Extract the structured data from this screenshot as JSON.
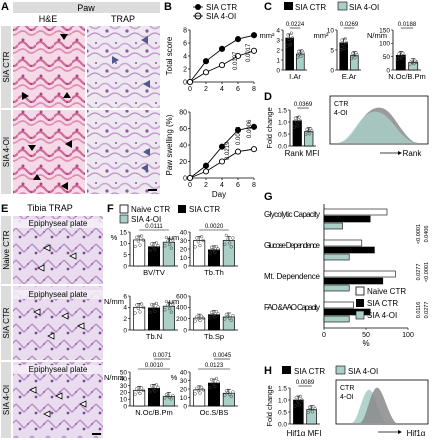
{
  "panels": {
    "A": {
      "letter": "A",
      "title": "Paw",
      "col_he": "H&E",
      "col_trap": "TRAP",
      "rows": [
        "SIA CTR",
        "SIA 4-OI"
      ]
    },
    "B": {
      "letter": "B",
      "legend": [
        "SIA CTR",
        "SIA 4-OI"
      ],
      "xlabel": "Day",
      "p_top": [
        "0.0197",
        "0.0017"
      ],
      "p_bottom": [
        "0.0219",
        "0.0043",
        "0.0006"
      ]
    },
    "C": {
      "letter": "C",
      "legend": [
        "SIA CTR",
        "SIA 4-OI"
      ],
      "p_values": [
        "0.0224",
        "0.0269",
        "0.0188"
      ],
      "unit_labels": [
        "mm²",
        "mm²",
        "N/mm"
      ]
    },
    "D": {
      "letter": "D",
      "p_value": "0.0369",
      "ylabel": "Fold change",
      "xlabel": "Rank MFI",
      "flow_ctr": "CTR",
      "flow_oi": "4-OI",
      "flow_xlabel": "Rank"
    },
    "E": {
      "letter": "E",
      "title": "Tibia TRAP",
      "plate_label": "Epiphyseal plate",
      "rows": [
        "Naive CTR",
        "SIA CTR",
        "SIA 4-OI"
      ]
    },
    "F": {
      "letter": "F",
      "legend": [
        "Naive CTR",
        "SIA CTR",
        "SIA 4-OI"
      ],
      "p_values": [
        "0.0111",
        "0.0020",
        "0.0010",
        "0.0071",
        "0.0123",
        "0.0045"
      ],
      "units": [
        "%",
        "μm",
        "N/mm",
        "μm",
        "N/mm",
        "%"
      ]
    },
    "G": {
      "letter": "G",
      "legend": [
        "Naive CTR",
        "SIA CTR",
        "SIA 4-OI"
      ],
      "categories": [
        "Glycolytic Capacity",
        "Glucose Dependence",
        "Mt. Dependence",
        "FAO & AAO Capacity"
      ],
      "xlabel": "%",
      "xticks": [
        "0",
        "50",
        "100"
      ],
      "p_values": [
        "<0.0001",
        "0.0406",
        "0.0277",
        "<0.0001",
        "0.0116",
        "0.0277"
      ]
    },
    "H": {
      "letter": "H",
      "legend": [
        "SIA CTR",
        "SIA 4-OI"
      ],
      "p_value": "0.0089",
      "ylabel": "Fold change",
      "xlabel": "Hif1α MFI",
      "flow_ctr": "CTR",
      "flow_oi": "4-OI",
      "flow_xlabel": "Hif1α"
    }
  },
  "colors": {
    "ctr": "#000000",
    "oi": "#a9cfc7",
    "naive": "#ffffff",
    "he": "#d97aa6",
    "trap": "#c9b0d2"
  },
  "chart_data": [
    {
      "type": "line",
      "panel": "B-top",
      "ylabel": "Total score",
      "xlabel": "Day",
      "x": [
        0,
        2,
        4,
        6,
        8
      ],
      "xlim": [
        0,
        8
      ],
      "ylim": [
        0,
        8
      ],
      "xticks": [
        0,
        2,
        4,
        6,
        8
      ],
      "yticks": [
        0,
        2,
        4,
        6,
        8
      ],
      "series": [
        {
          "name": "SIA CTR",
          "values": [
            0,
            3.2,
            5.1,
            6.6,
            7.2
          ]
        },
        {
          "name": "SIA 4-OI",
          "values": [
            0,
            1.5,
            2.6,
            4.0,
            4.8
          ]
        }
      ]
    },
    {
      "type": "line",
      "panel": "B-bottom",
      "ylabel": "Paw swelling (%)",
      "xlabel": "Day",
      "x": [
        0,
        2,
        4,
        6,
        8
      ],
      "xlim": [
        0,
        8
      ],
      "ylim": [
        0,
        80
      ],
      "xticks": [
        0,
        2,
        4,
        6,
        8
      ],
      "yticks": [
        0,
        20,
        40,
        60,
        80
      ],
      "series": [
        {
          "name": "SIA CTR",
          "values": [
            0,
            15,
            38,
            58,
            62
          ]
        },
        {
          "name": "SIA 4-OI",
          "values": [
            0,
            8,
            20,
            32,
            35
          ]
        }
      ]
    },
    {
      "type": "bar",
      "panel": "C",
      "categories": [
        "I.Ar",
        "E.Ar",
        "N.Oc/B.Pm"
      ],
      "series": [
        {
          "name": "SIA CTR",
          "values": [
            3.2,
            6.8,
            55
          ]
        },
        {
          "name": "SIA 4-OI",
          "values": [
            1.6,
            3.6,
            28
          ]
        }
      ],
      "ylims": [
        [
          0,
          4
        ],
        [
          0,
          10
        ],
        [
          0,
          150
        ]
      ],
      "yticks": [
        [
          "0",
          "1",
          "2",
          "3",
          "4"
        ],
        [
          "0",
          "5",
          "10"
        ],
        [
          "0",
          "50",
          "100",
          "150"
        ]
      ]
    },
    {
      "type": "bar",
      "panel": "D",
      "categories": [
        "Rank MFI"
      ],
      "series": [
        {
          "name": "SIA CTR",
          "values": [
            1.05
          ]
        },
        {
          "name": "SIA 4-OI",
          "values": [
            0.6
          ]
        }
      ],
      "ylim": [
        0,
        1.5
      ],
      "yticks": [
        "0.0",
        "0.5",
        "1.0",
        "1.5"
      ]
    },
    {
      "type": "bar",
      "panel": "F",
      "categories": [
        "BV/TV",
        "Tb.Th",
        "Tb.N",
        "Tb.Sp",
        "N.Oc/B.Pm",
        "Oc.S/BS"
      ],
      "series": [
        {
          "name": "Naive CTR",
          "values": [
            11.5,
            30,
            4.0,
            210,
            23,
            19
          ]
        },
        {
          "name": "SIA CTR",
          "values": [
            8.5,
            19,
            3.9,
            270,
            26,
            27
          ]
        },
        {
          "name": "SIA 4-OI",
          "values": [
            10.5,
            30,
            4.2,
            230,
            14,
            15
          ]
        }
      ],
      "ylims": [
        [
          0,
          15
        ],
        [
          0,
          40
        ],
        [
          0,
          6
        ],
        [
          0,
          600
        ],
        [
          0,
          50
        ],
        [
          0,
          40
        ]
      ],
      "yticks": [
        [
          "0",
          "5",
          "10",
          "15"
        ],
        [
          "0",
          "10",
          "20",
          "30",
          "40"
        ],
        [
          "0",
          "2",
          "4",
          "6"
        ],
        [
          "0",
          "200",
          "400",
          "600"
        ],
        [
          "0",
          "10",
          "20",
          "30",
          "40",
          "50"
        ],
        [
          "0",
          "10",
          "20",
          "30",
          "40"
        ]
      ]
    },
    {
      "type": "bar",
      "panel": "G",
      "categories": [
        "Glycolytic Capacity",
        "Glucose Dependence",
        "Mt. Dependence",
        "FAO & AAO Capacity"
      ],
      "series": [
        {
          "name": "Naive CTR",
          "values": [
            75,
            45,
            85,
            35
          ]
        },
        {
          "name": "SIA CTR",
          "values": [
            55,
            60,
            70,
            55
          ]
        },
        {
          "name": "SIA 4-OI",
          "values": [
            22,
            30,
            30,
            30
          ]
        }
      ],
      "xlim": [
        0,
        100
      ]
    },
    {
      "type": "bar",
      "panel": "H",
      "categories": [
        "Hif1α MFI"
      ],
      "series": [
        {
          "name": "SIA CTR",
          "values": [
            1.0
          ]
        },
        {
          "name": "SIA 4-OI",
          "values": [
            0.6
          ]
        }
      ],
      "ylim": [
        0,
        1.5
      ],
      "yticks": [
        "0.0",
        "0.5",
        "1.0",
        "1.5"
      ]
    }
  ]
}
